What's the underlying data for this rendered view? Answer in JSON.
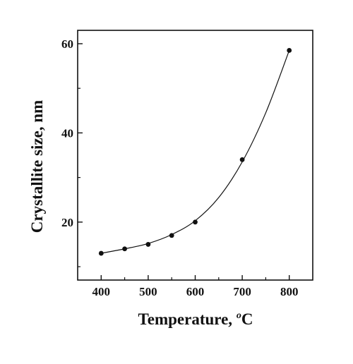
{
  "chart_data": {
    "type": "scatter",
    "title": "",
    "xlabel": "Temperature, ",
    "xlabel_superscript": "o",
    "xlabel_unit": "C",
    "ylabel": "Crystallite size, nm",
    "xlim": [
      350,
      850
    ],
    "ylim": [
      7,
      63
    ],
    "x_ticks": [
      400,
      500,
      600,
      700,
      800
    ],
    "y_ticks": [
      20,
      40,
      60
    ],
    "x_minor_ticks": [
      450,
      550,
      650,
      750
    ],
    "y_minor_ticks": [
      10,
      30,
      50
    ],
    "grid": false,
    "legend": "none",
    "series": [
      {
        "markers": true,
        "line": "smooth",
        "x": [
          400,
          450,
          500,
          550,
          600,
          700,
          800
        ],
        "y": [
          13.0,
          14.0,
          15.0,
          17.0,
          20.0,
          34.0,
          58.5
        ]
      }
    ],
    "fit_curve": {
      "x": [
        400,
        450,
        500,
        550,
        600,
        650,
        700,
        750,
        800
      ],
      "y": [
        13.0,
        14.0,
        15.2,
        17.2,
        20.3,
        25.5,
        33.5,
        44.5,
        58.5
      ]
    }
  },
  "colors": {
    "ink": "#111111",
    "background": "#ffffff"
  }
}
